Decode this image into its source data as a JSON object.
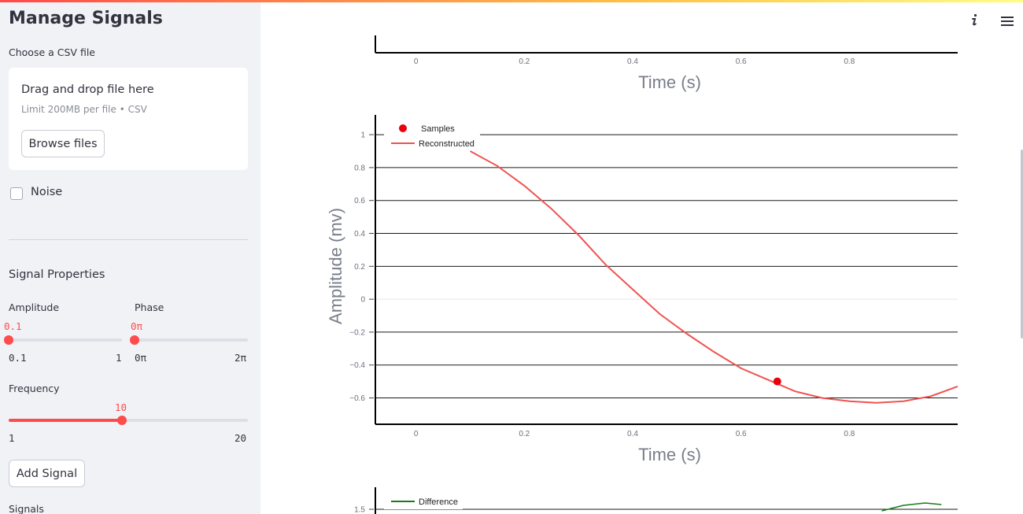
{
  "sidebar": {
    "title": "Manage Signals",
    "uploader": {
      "label": "Choose a CSV file",
      "drop_text": "Drag and drop file here",
      "limit_text": "Limit 200MB per file • CSV",
      "browse_label": "Browse files"
    },
    "noise": {
      "label": "Noise",
      "checked": false
    },
    "signal_properties": "Signal Properties",
    "amplitude": {
      "label": "Amplitude",
      "value": "0.1",
      "min": "0.1",
      "max": "1",
      "fraction": 0
    },
    "phase": {
      "label": "Phase",
      "value": "0π",
      "min": "0π",
      "max": "2π",
      "fraction": 0
    },
    "frequency": {
      "label": "Frequency",
      "value": "10",
      "min": "1",
      "max": "20",
      "fraction": 0.4737
    },
    "add_signal_label": "Add Signal",
    "signals_label": "Signals"
  },
  "header_icons": [
    "info-icon",
    "hamburger-menu-icon"
  ],
  "colors": {
    "accent": "#ff4b4b",
    "sample": "#e8000b",
    "reconstructed": "#ef5350",
    "difference": "#1a7a1a",
    "axis_title": "#7a7e8a"
  },
  "chart_data": [
    {
      "type": "line",
      "partial": true,
      "xlabel": "Time (s)",
      "x_ticks": [
        "0",
        "0.2",
        "0.4",
        "0.6",
        "0.8"
      ],
      "xlim": [
        -0.075,
        1
      ]
    },
    {
      "type": "line",
      "xlabel": "Time (s)",
      "ylabel": "Amplitude (mv)",
      "xlim": [
        -0.075,
        1
      ],
      "ylim": [
        -0.76,
        1.12
      ],
      "x_ticks": [
        "0",
        "0.2",
        "0.4",
        "0.6",
        "0.8"
      ],
      "y_ticks": [
        "1",
        "0.8",
        "0.6",
        "0.4",
        "0.2",
        "0",
        "−0.2",
        "−0.4",
        "−0.6"
      ],
      "y_tick_values": [
        1,
        0.8,
        0.6,
        0.4,
        0.2,
        0,
        -0.2,
        -0.4,
        -0.6
      ],
      "grid": true,
      "legend": {
        "position": "top-left",
        "entries": [
          "Samples",
          "Reconstructed"
        ]
      },
      "series": [
        {
          "name": "Samples",
          "mode": "markers",
          "x": [
            0.667
          ],
          "y": [
            -0.5
          ]
        },
        {
          "name": "Reconstructed",
          "mode": "line",
          "x": [
            0.1,
            0.15,
            0.2,
            0.25,
            0.3,
            0.35,
            0.4,
            0.45,
            0.5,
            0.55,
            0.6,
            0.65,
            0.7,
            0.75,
            0.8,
            0.85,
            0.9,
            0.95,
            1.0
          ],
          "y": [
            0.9,
            0.81,
            0.69,
            0.55,
            0.39,
            0.21,
            0.06,
            -0.09,
            -0.21,
            -0.32,
            -0.42,
            -0.49,
            -0.56,
            -0.6,
            -0.62,
            -0.63,
            -0.62,
            -0.59,
            -0.53
          ]
        }
      ]
    },
    {
      "type": "line",
      "partial": true,
      "y_ticks": [
        "1.5"
      ],
      "y_tick_values": [
        1.5
      ],
      "legend": {
        "position": "top-left",
        "entries": [
          "Difference"
        ]
      },
      "series": [
        {
          "name": "Difference",
          "mode": "line",
          "x": [
            0.86,
            0.9,
            0.94,
            0.97
          ],
          "y": [
            1.48,
            1.55,
            1.58,
            1.56
          ]
        }
      ]
    }
  ]
}
